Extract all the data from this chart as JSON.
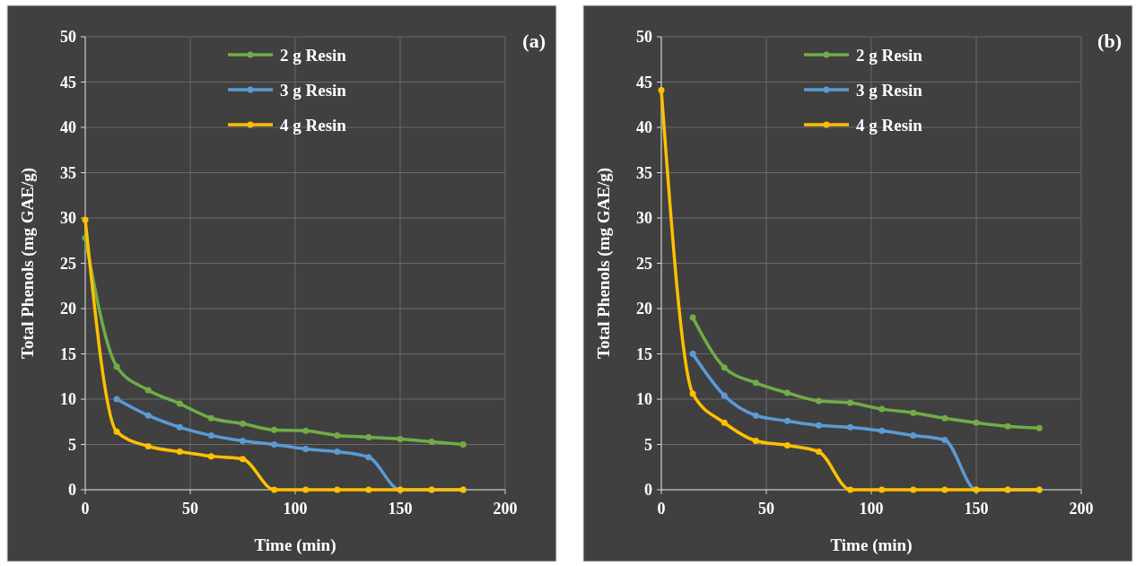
{
  "chart_data": [
    {
      "type": "line",
      "annotations": [
        "(a)"
      ],
      "xlabel": "Time (min)",
      "ylabel": "Total Phenols (mg GAE/g)",
      "x": [
        0,
        15,
        30,
        45,
        60,
        75,
        90,
        105,
        120,
        135,
        150,
        165,
        180
      ],
      "xlim": [
        0,
        200
      ],
      "xticks": [
        0,
        50,
        100,
        150,
        200
      ],
      "ylim": [
        0,
        50
      ],
      "yticks": [
        0,
        5,
        10,
        15,
        20,
        25,
        30,
        35,
        40,
        45,
        50
      ],
      "grid": true,
      "legend": "top",
      "marker": "circle",
      "series": [
        {
          "name": "2 g Resin",
          "color": "#70ad47",
          "values": [
            27.8,
            13.6,
            11.0,
            9.5,
            7.9,
            7.3,
            6.6,
            6.5,
            6.0,
            5.8,
            5.6,
            5.3,
            5.0
          ]
        },
        {
          "name": "3 g Resin",
          "color": "#5b9bd5",
          "values": [
            null,
            10.0,
            8.2,
            6.9,
            6.0,
            5.4,
            5.0,
            4.5,
            4.2,
            3.6,
            0,
            0,
            0
          ]
        },
        {
          "name": "4 g Resin",
          "color": "#ffc000",
          "values": [
            29.8,
            6.4,
            4.8,
            4.2,
            3.7,
            3.4,
            0,
            0,
            0,
            0,
            0,
            0,
            0
          ]
        }
      ]
    },
    {
      "type": "line",
      "annotations": [
        "(b)"
      ],
      "xlabel": "Time (min)",
      "ylabel": "Total Phenols (mg GAE/g)",
      "x": [
        0,
        15,
        30,
        45,
        60,
        75,
        90,
        105,
        120,
        135,
        150,
        165,
        180
      ],
      "xlim": [
        0,
        200
      ],
      "xticks": [
        0,
        50,
        100,
        150,
        200
      ],
      "ylim": [
        0,
        50
      ],
      "yticks": [
        0,
        5,
        10,
        15,
        20,
        25,
        30,
        35,
        40,
        45,
        50
      ],
      "grid": true,
      "legend": "top",
      "marker": "circle",
      "series": [
        {
          "name": "2 g Resin",
          "color": "#70ad47",
          "values": [
            null,
            19.0,
            13.5,
            11.8,
            10.7,
            9.8,
            9.6,
            8.9,
            8.5,
            7.9,
            7.4,
            7.0,
            6.8
          ]
        },
        {
          "name": "3 g Resin",
          "color": "#5b9bd5",
          "values": [
            null,
            15.0,
            10.4,
            8.2,
            7.6,
            7.1,
            6.9,
            6.5,
            6.0,
            5.5,
            0,
            0,
            0
          ]
        },
        {
          "name": "4 g Resin",
          "color": "#ffc000",
          "values": [
            44.1,
            10.6,
            7.4,
            5.4,
            4.9,
            4.2,
            0,
            0,
            0,
            0,
            0,
            0,
            0
          ]
        }
      ]
    }
  ]
}
